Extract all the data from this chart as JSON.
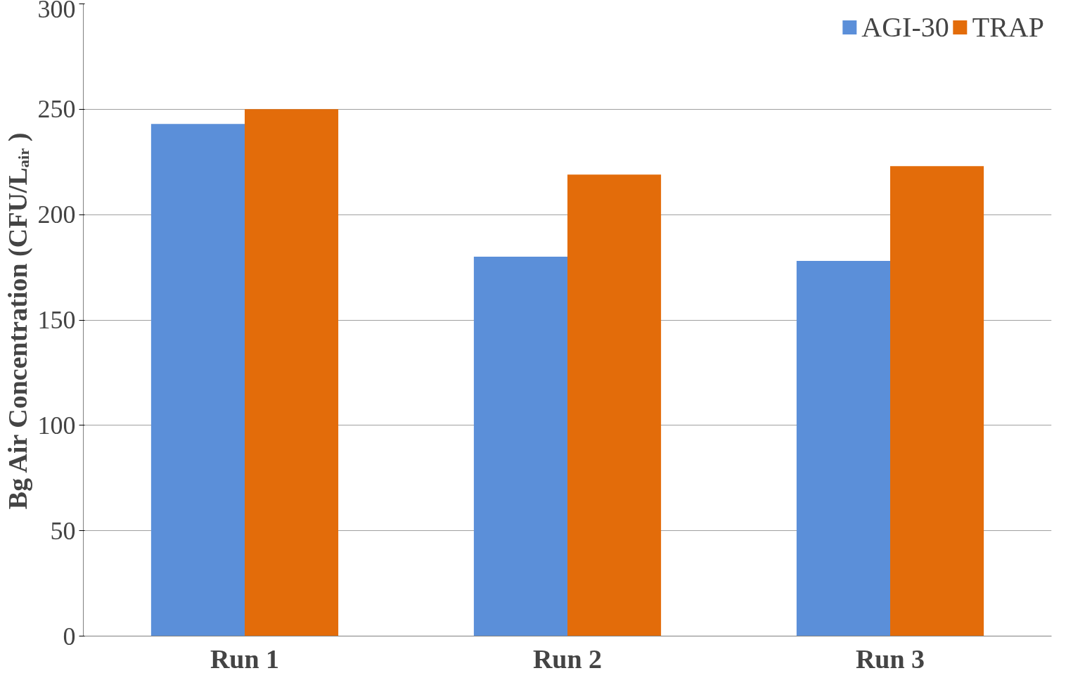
{
  "chart_data": {
    "type": "bar",
    "ylabel": "Bg Air Concentration (CFU/Lₐᵢᵣ )",
    "categories": [
      "Run 1",
      "Run 2",
      "Run 3"
    ],
    "series": [
      {
        "name": "AGI-30",
        "color": "#5b8fd9",
        "values": [
          243,
          180,
          178
        ]
      },
      {
        "name": "TRAP",
        "color": "#e36c0a",
        "values": [
          250,
          219,
          223
        ]
      }
    ],
    "ylim": [
      0,
      300
    ],
    "yticks": [
      0,
      50,
      100,
      150,
      200,
      250,
      300
    ],
    "grid": "y",
    "legend": "top right"
  }
}
